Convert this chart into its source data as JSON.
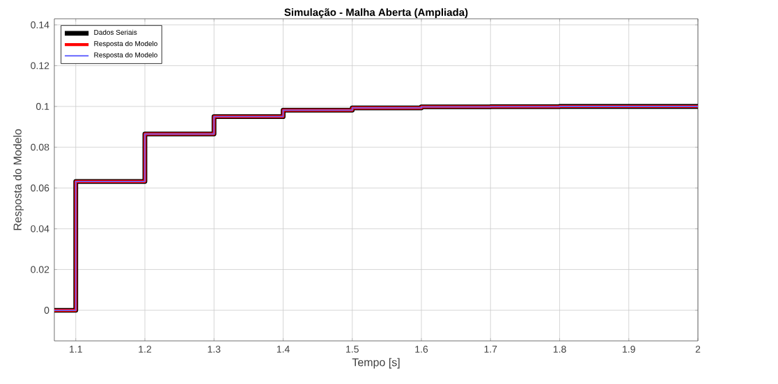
{
  "chart_data": {
    "type": "step",
    "title": "Simulação - Malha Aberta (Ampliada)",
    "xlabel": "Tempo [s]",
    "ylabel": "Resposta do Modelo",
    "x": [
      1.069,
      1.1,
      1.2,
      1.3,
      1.4,
      1.5,
      1.6,
      1.7,
      1.8,
      1.9,
      2.0
    ],
    "series": [
      {
        "name": "Dados Seriais",
        "color": "#000000",
        "values": [
          0,
          0.0632,
          0.0865,
          0.095,
          0.0982,
          0.0993,
          0.0998,
          0.0999,
          0.1,
          0.1,
          0.1
        ]
      },
      {
        "name": "Resposta do Modelo",
        "color": "#ff0000",
        "values": [
          0,
          0.0632,
          0.0865,
          0.095,
          0.0982,
          0.0993,
          0.0998,
          0.0999,
          0.1,
          0.1,
          0.1
        ]
      },
      {
        "name": "Resposta do Modelo",
        "color": "#6666ff",
        "values": [
          0,
          0.0632,
          0.0865,
          0.095,
          0.0982,
          0.0993,
          0.0998,
          0.0999,
          0.1,
          0.1,
          0.1
        ]
      }
    ],
    "xlim": [
      1.069,
      2.0
    ],
    "ylim": [
      -0.015,
      0.143
    ],
    "xticks": [
      1.1,
      1.2,
      1.3,
      1.4,
      1.5,
      1.6,
      1.7,
      1.8,
      1.9,
      2
    ],
    "yticks": [
      0,
      0.02,
      0.04,
      0.06,
      0.08,
      0.1,
      0.12,
      0.14
    ],
    "grid": true,
    "legend": "top left"
  }
}
